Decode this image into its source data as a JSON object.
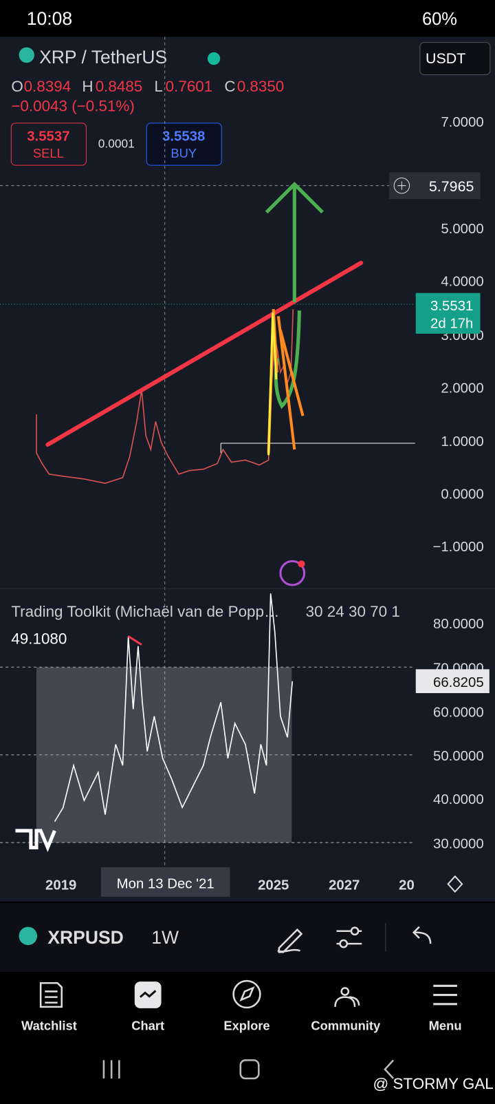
{
  "status": {
    "time": "10:08",
    "battery": "60%"
  },
  "header": {
    "symbol": "XRP / TetherUS",
    "currency": "USDT"
  },
  "ohlc": {
    "o_label": "O",
    "o": "0.8394",
    "h_label": "H",
    "h": "0.8485",
    "l_label": "L",
    "l": "0.7601",
    "c_label": "C",
    "c": "0.8350",
    "change": "−0.0043 (−0.51%)"
  },
  "trade": {
    "sell_price": "3.5537",
    "sell": "SELL",
    "spread": "0.0001",
    "buy_price": "3.5538",
    "buy": "BUY"
  },
  "price_axis": {
    "labels": [
      "7.0000",
      "5.0000",
      "4.0000",
      "3.0000",
      "2.0000",
      "1.0000",
      "0.0000",
      "−1.0000"
    ],
    "crosshair": "5.7965",
    "last_price": "3.5531",
    "countdown": "2d 17h"
  },
  "indicator": {
    "title": "Trading Toolkit (Michaël van de Popp…",
    "params": "30 24 30 70 1",
    "value": "49.1080",
    "labels": [
      "80.0000",
      "70.0000",
      "60.0000",
      "50.0000",
      "40.0000",
      "30.0000"
    ],
    "last_value": "66.8205"
  },
  "time_axis": {
    "labels": [
      "2019",
      "2025",
      "2027",
      "20"
    ],
    "crosshair": "Mon 13 Dec '21"
  },
  "toolbar": {
    "symbol": "XRPUSD",
    "interval": "1W"
  },
  "nav": {
    "items": [
      "Watchlist",
      "Chart",
      "Explore",
      "Community",
      "Menu"
    ]
  },
  "watermark": "@ STORMY GAL"
}
